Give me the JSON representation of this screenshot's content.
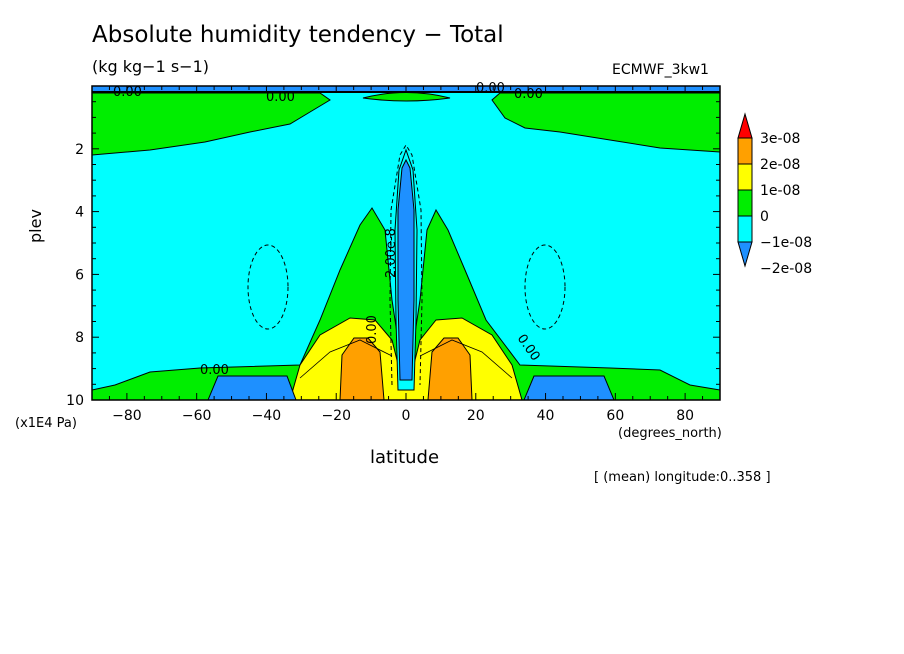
{
  "title": "Absolute humidity tendency − Total",
  "units": "(kg kg−1 s−1)",
  "dataset": "ECMWF_3kw1",
  "footnote": "[ (mean) longitude:0..358 ]",
  "chart_data": {
    "type": "heatmap",
    "title": "Absolute humidity tendency − Total",
    "xlabel": "latitude",
    "x_unit_label": "(degrees_north)",
    "ylabel": "plev",
    "y_unit_label": "(x1E4 Pa)",
    "xlim": [
      -90,
      90
    ],
    "ylim": [
      10,
      0
    ],
    "y_inverted": true,
    "xticks": [
      -80,
      -60,
      -40,
      -20,
      0,
      20,
      40,
      60,
      80
    ],
    "yticks": [
      2,
      4,
      6,
      8,
      10
    ],
    "colorbar": {
      "labels": [
        "3e-08",
        "2e-08",
        "1e-08",
        "0",
        "−1e-08",
        "−2e-08"
      ],
      "colors": [
        "#ff0000",
        "#ffa000",
        "#ffff00",
        "#00ee00",
        "#00ffff",
        "#1e90ff"
      ],
      "extend": "both"
    },
    "contour_labels": [
      "0.00",
      "0.00",
      "0.00",
      "0.00",
      "2.00e-8",
      "0.00",
      "0.00",
      "0.00"
    ],
    "features": [
      {
        "region": "upper troposphere (plev < 2)",
        "sign": "positive",
        "band": "0 to 1e-08",
        "lat_range": [
          -90,
          -60
        ]
      },
      {
        "region": "upper troposphere (plev < 2)",
        "sign": "positive",
        "band": "0 to 1e-08",
        "lat_range": [
          60,
          90
        ]
      },
      {
        "region": "equatorial column",
        "sign": "negative",
        "band": "< -2e-08",
        "lat_range": [
          -3,
          3
        ],
        "plev_range": [
          2.5,
          9.5
        ]
      },
      {
        "region": "lower troposphere maxima",
        "sign": "positive",
        "band": "2e-08 to 3e-08",
        "lat_center": [
          -14,
          14
        ],
        "plev_range": [
          8.5,
          10
        ]
      },
      {
        "region": "subtropical surface",
        "sign": "negative",
        "band": "−2e-08 to −1e-08",
        "lat_range": [
          -57,
          -35
        ]
      },
      {
        "region": "subtropical surface",
        "sign": "negative",
        "band": "−2e-08 to −1e-08",
        "lat_range": [
          35,
          57
        ]
      }
    ],
    "grid": false
  }
}
